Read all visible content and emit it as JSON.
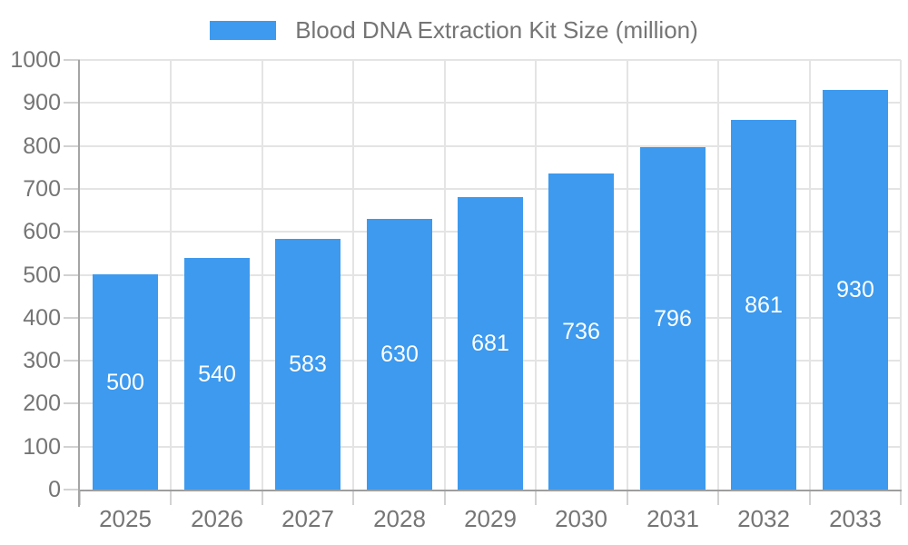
{
  "chart_data": {
    "type": "bar",
    "title": "Blood DNA Extraction Kit Size (million)",
    "legend": {
      "position": "top",
      "label": "Blood DNA Extraction Kit Size (million)"
    },
    "categories": [
      "2025",
      "2026",
      "2027",
      "2028",
      "2029",
      "2030",
      "2031",
      "2032",
      "2033"
    ],
    "values": [
      500,
      540,
      583,
      630,
      681,
      736,
      796,
      861,
      930
    ],
    "xlabel": "",
    "ylabel": "",
    "ylim": [
      0,
      1000
    ],
    "ytick_step": 100,
    "y_tick_labels": [
      "0",
      "100",
      "200",
      "300",
      "400",
      "500",
      "600",
      "700",
      "800",
      "900",
      "1000"
    ],
    "grid": {
      "horizontal": true,
      "vertical_category_boundaries": true
    },
    "bar_value_labels_inside": true,
    "colors": {
      "bar": "#3D9AEF",
      "bar_value_label": "#FFFFFF",
      "axis_text": "#757575",
      "grid_line": "#E4E4E4",
      "tick_line": "#D2D2D2",
      "y_axis_line": "#A5A5A5",
      "x_axis_line": "#9E9E9E",
      "background": "#FFFFFF"
    }
  }
}
